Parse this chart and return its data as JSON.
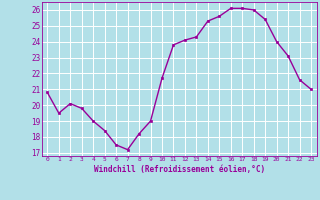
{
  "x": [
    0,
    1,
    2,
    3,
    4,
    5,
    6,
    7,
    8,
    9,
    10,
    11,
    12,
    13,
    14,
    15,
    16,
    17,
    18,
    19,
    20,
    21,
    22,
    23
  ],
  "y": [
    20.8,
    19.5,
    20.1,
    19.8,
    19.0,
    18.4,
    17.5,
    17.2,
    18.2,
    19.0,
    21.7,
    23.8,
    24.1,
    24.3,
    25.3,
    25.6,
    26.1,
    26.1,
    26.0,
    25.4,
    24.0,
    23.1,
    21.6,
    21.0
  ],
  "line_color": "#990099",
  "marker": "s",
  "marker_size": 2,
  "linewidth": 1.0,
  "xlabel": "Windchill (Refroidissement éolien,°C)",
  "ylabel_ticks": [
    17,
    18,
    19,
    20,
    21,
    22,
    23,
    24,
    25,
    26
  ],
  "ylim": [
    16.8,
    26.5
  ],
  "xlim": [
    -0.5,
    23.5
  ],
  "xtick_labels": [
    "0",
    "1",
    "2",
    "3",
    "4",
    "5",
    "6",
    "7",
    "8",
    "9",
    "10",
    "11",
    "12",
    "13",
    "14",
    "15",
    "16",
    "17",
    "18",
    "19",
    "20",
    "21",
    "22",
    "23"
  ],
  "bg_color": "#b2e0e8",
  "grid_color": "#c8e8d0",
  "title": ""
}
